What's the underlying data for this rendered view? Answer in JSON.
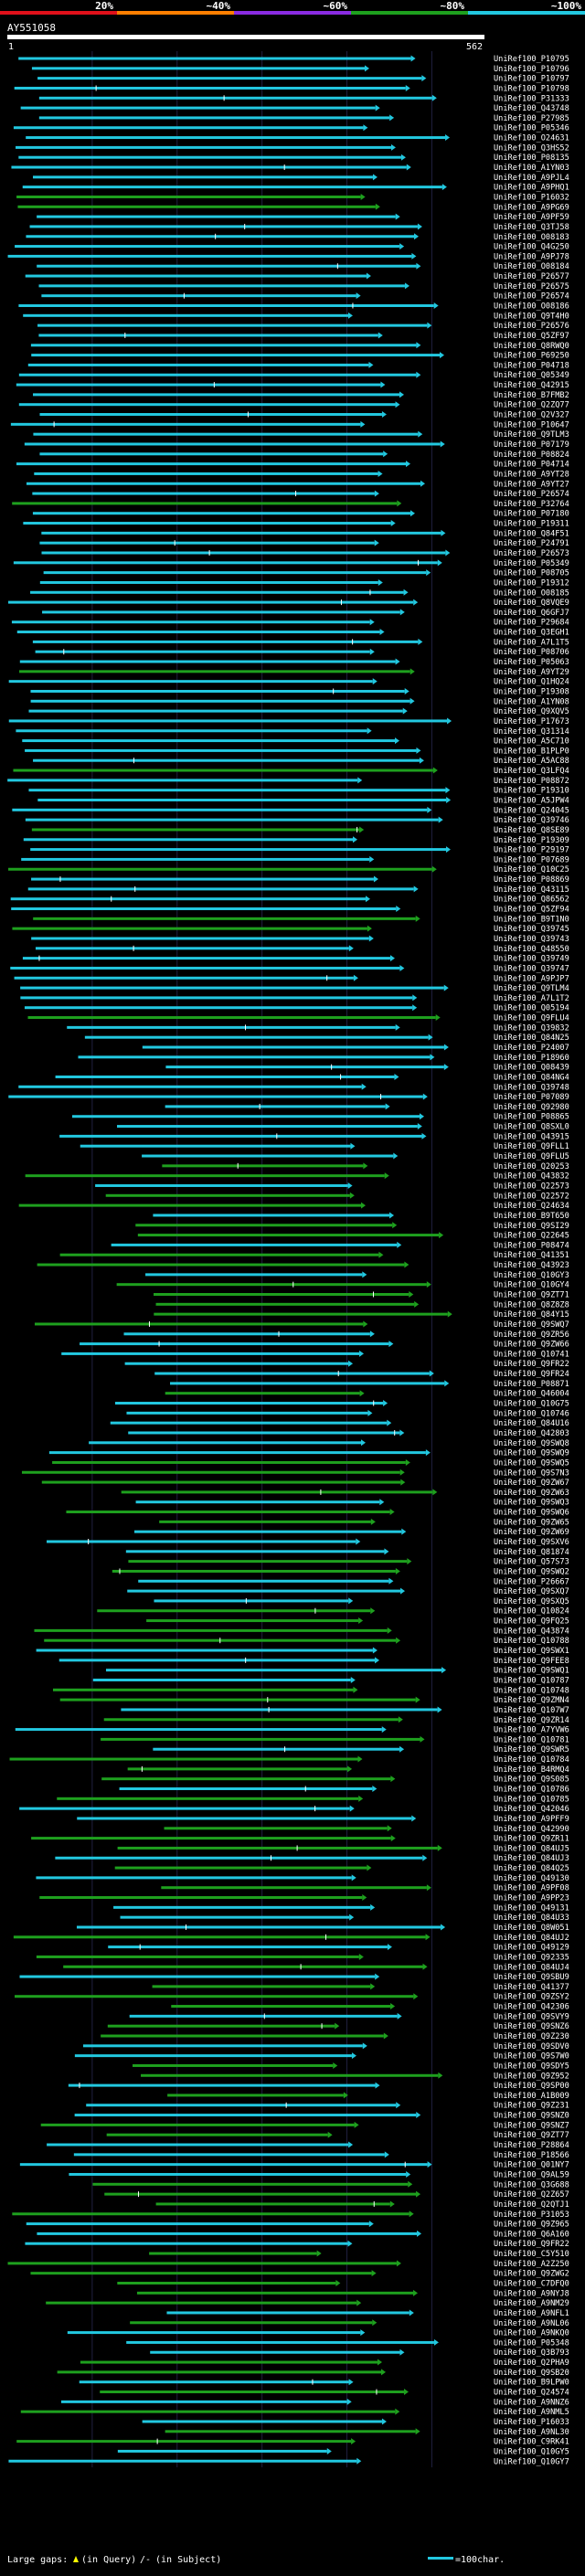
{
  "header": {
    "scale_labels": [
      "20%",
      "~40%",
      "~60%",
      "~80%",
      "~100%"
    ],
    "scale_colors": [
      "#e0101a",
      "#ff7f00",
      "#8a2be2",
      "#1ea01e",
      "#22c8e0"
    ],
    "query_id": "AY551058",
    "ruler_start": "1",
    "ruler_end": "562"
  },
  "footer": {
    "legend_text": "Large gaps:",
    "legend_in_query": "(in Query)",
    "legend_in_subject": "(in Subject)",
    "scale_note": "=100char."
  },
  "chart_data": {
    "type": "alignment-overview",
    "query_length": 562,
    "hits": [
      "UniRef100_P10795",
      "UniRef100_P10796",
      "UniRef100_P10797",
      "UniRef100_P10798",
      "UniRef100_P31333",
      "UniRef100_Q43748",
      "UniRef100_P27985",
      "UniRef100_P05346",
      "UniRef100_O24631",
      "UniRef100_Q3HS52",
      "UniRef100_P08135",
      "UniRef100_A1YN03",
      "UniRef100_A9PJL4",
      "UniRef100_A9PHQ1",
      "UniRef100_P16032",
      "UniRef100_A9PG69",
      "UniRef100_A9PF59",
      "UniRef100_Q3TJ58",
      "UniRef100_O08183",
      "UniRef100_Q4G250",
      "UniRef100_A9PJ78",
      "UniRef100_O08184",
      "UniRef100_P26577",
      "UniRef100_P26575",
      "UniRef100_P26574",
      "UniRef100_O08186",
      "UniRef100_Q9T4H0",
      "UniRef100_P26576",
      "UniRef100_Q5ZF97",
      "UniRef100_Q8RWQ0",
      "UniRef100_P69250",
      "UniRef100_P04718",
      "UniRef100_Q05349",
      "UniRef100_Q42915",
      "UniRef100_B7FMB2",
      "UniRef100_Q2ZQ77",
      "UniRef100_Q2V327",
      "UniRef100_P10647",
      "UniRef100_Q9TLM3",
      "UniRef100_P07179",
      "UniRef100_P08824",
      "UniRef100_P04714",
      "UniRef100_A9YT28",
      "UniRef100_A9YT27",
      "UniRef100_P26574",
      "UniRef100_P32764",
      "UniRef100_P07180",
      "UniRef100_P19311",
      "UniRef100_Q84F51",
      "UniRef100_P24791",
      "UniRef100_P26573",
      "UniRef100_P05349",
      "UniRef100_P08705",
      "UniRef100_P19312",
      "UniRef100_O08185",
      "UniRef100_Q8VQE9",
      "UniRef100_Q6GFJ7",
      "UniRef100_P29684",
      "UniRef100_Q3EGH1",
      "UniRef100_A7L1T5",
      "UniRef100_P08706",
      "UniRef100_P05063",
      "UniRef100_A9YT29",
      "UniRef100_Q1HQ24",
      "UniRef100_P19308",
      "UniRef100_A1YN08",
      "UniRef100_Q9XQV5",
      "UniRef100_P17673",
      "UniRef100_Q31314",
      "UniRef100_A5C710",
      "UniRef100_B1PLP0",
      "UniRef100_A5AC88",
      "UniRef100_Q3LFQ4",
      "UniRef100_P08872",
      "UniRef100_P19310",
      "UniRef100_A5JPW4",
      "UniRef100_Q24045",
      "UniRef100_Q39746",
      "UniRef100_Q8SE89",
      "UniRef100_P19309",
      "UniRef100_P29197",
      "UniRef100_P07689",
      "UniRef100_Q10C25",
      "UniRef100_P08869",
      "UniRef100_Q43115",
      "UniRef100_Q86562",
      "UniRef100_Q5ZF94",
      "UniRef100_B9T1N0",
      "UniRef100_Q39745",
      "UniRef100_Q39743",
      "UniRef100_Q48550",
      "UniRef100_Q39749",
      "UniRef100_Q39747",
      "UniRef100_A9PJP7",
      "UniRef100_Q9TLM4",
      "UniRef100_A7L1T2",
      "UniRef100_Q05194",
      "UniRef100_Q9FLU4",
      "UniRef100_Q39832",
      "UniRef100_Q84N25",
      "UniRef100_P24007",
      "UniRef100_P18960",
      "UniRef100_Q08439",
      "UniRef100_Q84NG4",
      "UniRef100_Q39748",
      "UniRef100_P07089",
      "UniRef100_Q92980",
      "UniRef100_P08865",
      "UniRef100_Q8SXL0",
      "UniRef100_Q43915",
      "UniRef100_Q9FLL1",
      "UniRef100_Q9FLU5",
      "UniRef100_Q20253",
      "UniRef100_Q43832",
      "UniRef100_Q22573",
      "UniRef100_Q22572",
      "UniRef100_Q24634",
      "UniRef100_B9T650",
      "UniRef100_Q9SI29",
      "UniRef100_Q22645",
      "UniRef100_P08474",
      "UniRef100_Q41351",
      "UniRef100_Q43923",
      "UniRef100_Q10GY3",
      "UniRef100_Q10GY4",
      "UniRef100_Q9ZT71",
      "UniRef100_Q8Z8Z8",
      "UniRef100_Q84Y15",
      "UniRef100_Q9SWQ7",
      "UniRef100_Q9ZR56",
      "UniRef100_Q9ZW66",
      "UniRef100_Q10741",
      "UniRef100_Q9FR22",
      "UniRef100_Q9FR24",
      "UniRef100_P08871",
      "UniRef100_Q46004",
      "UniRef100_Q10G75",
      "UniRef100_Q10746",
      "UniRef100_Q84U16",
      "UniRef100_Q42803",
      "UniRef100_Q9SWQ8",
      "UniRef100_Q9SWQ9",
      "UniRef100_Q9SWQ5",
      "UniRef100_Q9S7N3",
      "UniRef100_Q9ZW67",
      "UniRef100_Q9ZW63",
      "UniRef100_Q9SWQ3",
      "UniRef100_Q9SWQ6",
      "UniRef100_Q9ZW65",
      "UniRef100_Q9ZW69",
      "UniRef100_Q9SXV6",
      "UniRef100_Q81874",
      "UniRef100_Q57S73",
      "UniRef100_Q9SWQ2",
      "UniRef100_P26667",
      "UniRef100_Q9SXQ7",
      "UniRef100_Q9SXQ5",
      "UniRef100_Q10824",
      "UniRef100_Q9FQ25",
      "UniRef100_Q43874",
      "UniRef100_Q10788",
      "UniRef100_Q9SWX1",
      "UniRef100_Q9FEE8",
      "UniRef100_Q9SWQ1",
      "UniRef100_Q10787",
      "UniRef100_Q10748",
      "UniRef100_Q9ZMN4",
      "UniRef100_Q107W7",
      "UniRef100_Q9ZR14",
      "UniRef100_A7YVW6",
      "UniRef100_Q10781",
      "UniRef100_Q9SWR5",
      "UniRef100_Q10784",
      "UniRef100_B4RMQ4",
      "UniRef100_Q9S085",
      "UniRef100_Q10786",
      "UniRef100_Q10785",
      "UniRef100_Q42046",
      "UniRef100_A9PFF9",
      "UniRef100_Q42990",
      "UniRef100_Q9ZR11",
      "UniRef100_Q84UJ5",
      "UniRef100_Q84UJ3",
      "UniRef100_Q84Q25",
      "UniRef100_Q49130",
      "UniRef100_A9PF08",
      "UniRef100_A9PP23",
      "UniRef100_Q49131",
      "UniRef100_Q84U33",
      "UniRef100_Q8W051",
      "UniRef100_Q84UJ2",
      "UniRef100_Q49129",
      "UniRef100_Q92335",
      "UniRef100_Q84UJ4",
      "UniRef100_Q9SBU9",
      "UniRef100_Q41377",
      "UniRef100_Q9ZSY2",
      "UniRef100_Q42306",
      "UniRef100_Q9SVY9",
      "UniRef100_Q9SNZ6",
      "UniRef100_Q9Z230",
      "UniRef100_Q9SDV0",
      "UniRef100_Q9S7W0",
      "UniRef100_Q9SDY5",
      "UniRef100_Q9Z952",
      "UniRef100_Q9SP00",
      "UniRef100_A1B009",
      "UniRef100_Q9Z231",
      "UniRef100_Q9SNZ0",
      "UniRef100_Q9SNZ7",
      "UniRef100_Q9ZT77",
      "UniRef100_P28864",
      "UniRef100_P18566",
      "UniRef100_Q01NY7",
      "UniRef100_Q9AL59",
      "UniRef100_Q3G688",
      "UniRef100_Q2Z657",
      "UniRef100_Q2QTJ1",
      "UniRef100_P31053",
      "UniRef100_Q9Z965",
      "UniRef100_Q6A160",
      "UniRef100_Q9FR22",
      "UniRef100_C5Y510",
      "UniRef100_A2Z250",
      "UniRef100_Q9ZWG2",
      "UniRef100_C7DFQ0",
      "UniRef100_A9NYJ8",
      "UniRef100_A9NM29",
      "UniRef100_A9NFL1",
      "UniRef100_A9NL06",
      "UniRef100_A9NKQ0",
      "UniRef100_P05348",
      "UniRef100_Q3B793",
      "UniRef100_Q2PHA9",
      "UniRef100_Q9SB20",
      "UniRef100_B9LPW0",
      "UniRef100_Q24574",
      "UniRef100_A9NNZ6",
      "UniRef100_A9NML5",
      "UniRef100_P16033",
      "UniRef100_A9NL30",
      "UniRef100_C9RK41",
      "UniRef100_Q10GY5",
      "UniRef100_Q10GY7"
    ]
  }
}
